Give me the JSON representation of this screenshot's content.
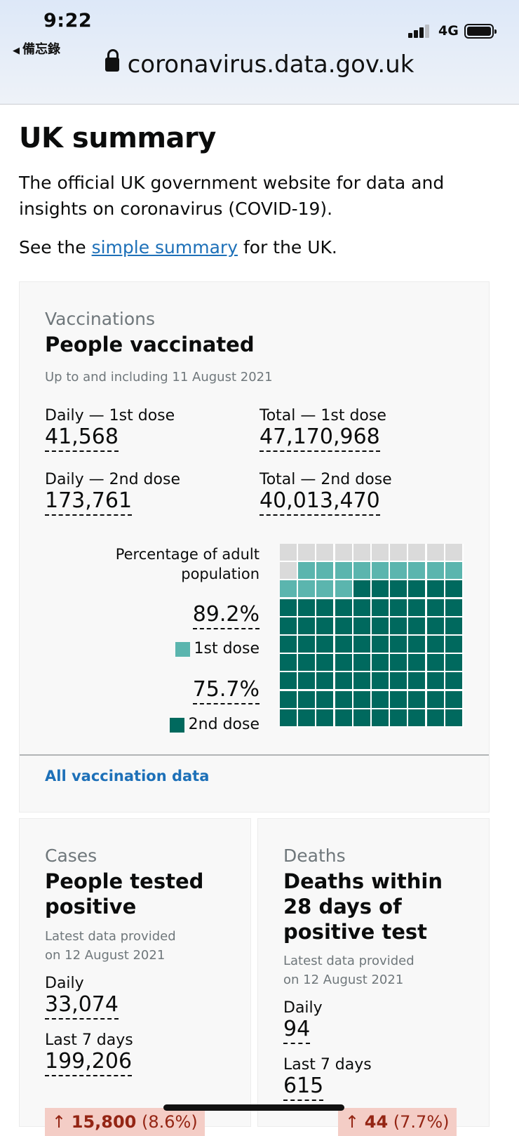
{
  "status_bar": {
    "time": "9:22",
    "back_label": "備忘錄",
    "network": "4G"
  },
  "browser": {
    "url": "coronavirus.data.gov.uk"
  },
  "page": {
    "title": "UK summary",
    "intro": "The official UK government website for data and insights on coronavirus (COVID-19).",
    "see_prefix": "See the ",
    "see_link": "simple summary",
    "see_suffix": " for the UK."
  },
  "vaccinations": {
    "category": "Vaccinations",
    "title": "People vaccinated",
    "updated": "Up to and including 11 August 2021",
    "daily_first_label": "Daily — 1st dose",
    "daily_first_value": "41,568",
    "total_first_label": "Total — 1st dose",
    "total_first_value": "47,170,968",
    "daily_second_label": "Daily — 2nd dose",
    "daily_second_value": "173,761",
    "total_second_label": "Total — 2nd dose",
    "total_second_value": "40,013,470",
    "pct_caption": "Percentage of adult population",
    "first_pct": "89.2%",
    "first_legend": "1st dose",
    "second_pct": "75.7%",
    "second_legend": "2nd dose",
    "first_fraction": 0.892,
    "second_fraction": 0.757,
    "colors": {
      "first": "#5bb5ae",
      "second": "#00695e",
      "empty": "#dadada"
    },
    "link": "All vaccination data"
  },
  "cases": {
    "category": "Cases",
    "title_line1": "People tested",
    "title_line2": "positive",
    "updated_line1": "Latest data provided",
    "updated_line2": "on 12 August 2021",
    "daily_label": "Daily",
    "daily_value": "33,074",
    "week_label": "Last 7 days",
    "week_value": "199,206",
    "change_arrow": "↑",
    "change_value": "15,800",
    "change_pct": "(8.6%)"
  },
  "deaths": {
    "category": "Deaths",
    "title_line1": "Deaths within",
    "title_line2": "28 days of",
    "title_line3": "positive test",
    "updated_line1": "Latest data provided",
    "updated_line2": "on 12 August 2021",
    "daily_label": "Daily",
    "daily_value": "94",
    "week_label": "Last 7 days",
    "week_value": "615",
    "change_arrow": "↑",
    "change_value": "44",
    "change_pct": "(7.7%)"
  }
}
